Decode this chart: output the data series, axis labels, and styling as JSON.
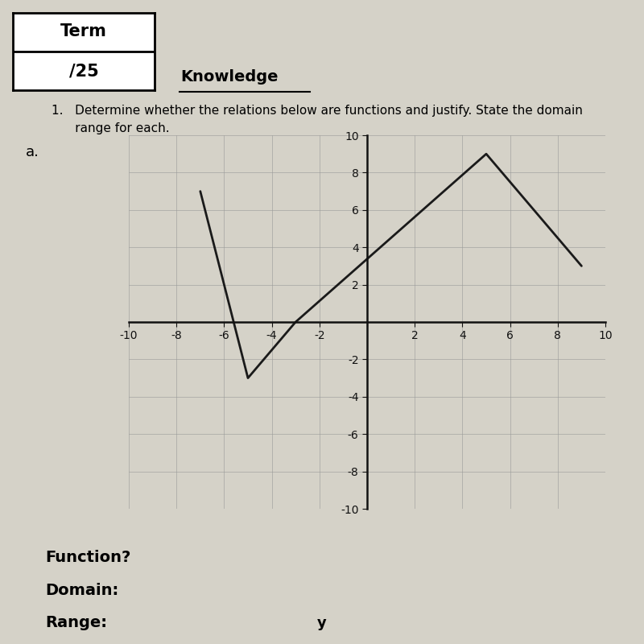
{
  "background_color": "#d5d2c8",
  "title_box_top": "Term",
  "title_box_bottom": "/25",
  "section_title": "Knowledge",
  "question_line1": "1.   Determine whether the relations below are functions and justify. State the domain",
  "question_line2": "      range for each.",
  "part_label": "a.",
  "line_points": [
    [
      -7,
      7
    ],
    [
      -5,
      -3
    ],
    [
      -3,
      0
    ],
    [
      5,
      9
    ],
    [
      9,
      3
    ]
  ],
  "line_color": "#1a1a1a",
  "line_width": 2.0,
  "grid_color": "#999999",
  "grid_linewidth": 0.4,
  "axis_color": "#111111",
  "tick_color": "#111111",
  "xlim": [
    -10,
    10
  ],
  "ylim": [
    -10,
    10
  ],
  "xticks": [
    -10,
    -8,
    -6,
    -4,
    -2,
    0,
    2,
    4,
    6,
    8,
    10
  ],
  "yticks": [
    -10,
    -8,
    -6,
    -4,
    -2,
    0,
    2,
    4,
    6,
    8,
    10
  ],
  "footer_labels": [
    "Function?",
    "Domain:",
    "Range:"
  ],
  "range_mark": "y"
}
